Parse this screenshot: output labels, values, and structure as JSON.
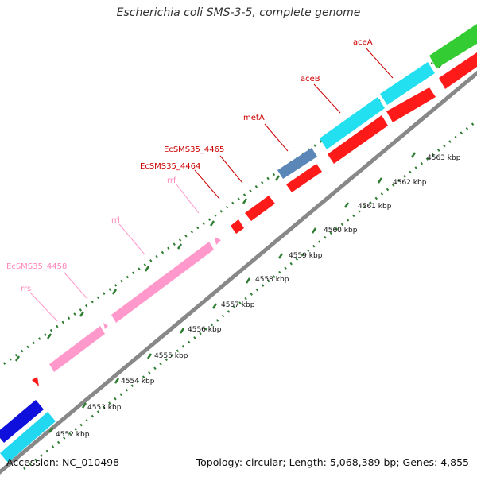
{
  "title": "Escherichia coli SMS-3-5, complete genome",
  "footer": {
    "accession": "Accession: NC_010498",
    "summary": "Topology: circular; Length: 5,068,389 bp; Genes: 4,855"
  },
  "ticks": [
    {
      "label": "4552 kbp",
      "value": 4552
    },
    {
      "label": "4553 kbp",
      "value": 4553
    },
    {
      "label": "4554 kbp",
      "value": 4554
    },
    {
      "label": "4555 kbp",
      "value": 4555
    },
    {
      "label": "4556 kbp",
      "value": 4556
    },
    {
      "label": "4557 kbp",
      "value": 4557
    },
    {
      "label": "4558 kbp",
      "value": 4558
    },
    {
      "label": "4559 kbp",
      "value": 4559
    },
    {
      "label": "4560 kbp",
      "value": 4560
    },
    {
      "label": "4561 kbp",
      "value": 4561
    },
    {
      "label": "4562 kbp",
      "value": 4562
    },
    {
      "label": "4563 kbp",
      "value": 4563
    }
  ],
  "genes": [
    {
      "name": "rrs",
      "color": "#ff99cc"
    },
    {
      "name": "EcSMS35_4458",
      "color": "#ff99cc"
    },
    {
      "name": "rrl",
      "color": "#ff99cc"
    },
    {
      "name": "rrf",
      "color": "#ff99cc"
    },
    {
      "name": "EcSMS35_4464",
      "color": "#cc0000"
    },
    {
      "name": "EcSMS35_4465",
      "color": "#cc0000"
    },
    {
      "name": "metA",
      "color": "#cc0000"
    },
    {
      "name": "aceB",
      "color": "#cc0000"
    },
    {
      "name": "aceA",
      "color": "#cc0000"
    }
  ],
  "colors": {
    "backbone": "#8c8c8c",
    "tick": "#2e7d32",
    "rrna": "#ff99cc",
    "cds": "#ff1a1a",
    "cds_other": "#5b86b8",
    "cyan": "#22e0f0",
    "blue": "#1010dd",
    "green": "#33cc33"
  }
}
